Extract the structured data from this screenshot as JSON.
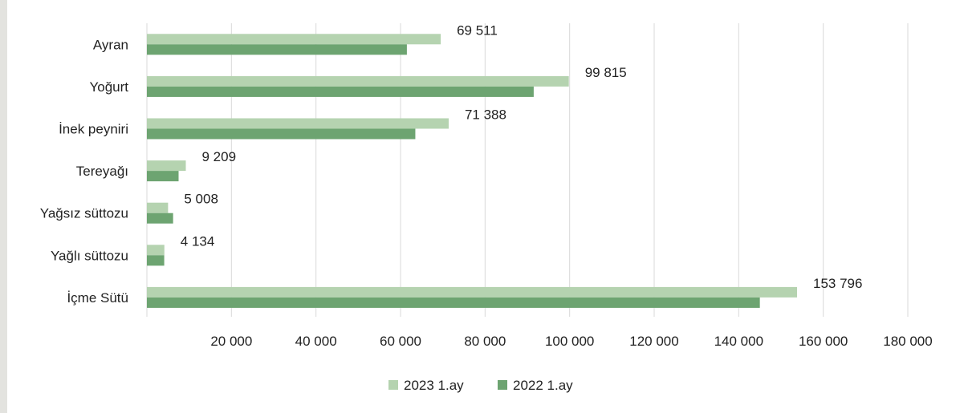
{
  "chart_data": {
    "type": "bar",
    "orientation": "horizontal",
    "categories": [
      "Ayran",
      "Yoğurt",
      "İnek peyniri",
      "Tereyağı",
      "Yağsız süttozu",
      "Yağlı süttozu",
      "İçme Sütü"
    ],
    "series": [
      {
        "name": "2023 1.ay",
        "color": "#b5d3b0",
        "values": [
          69511,
          99815,
          71388,
          9209,
          5008,
          4134,
          153796
        ],
        "labels": [
          "69 511",
          "99 815",
          "71 388",
          "9 209",
          "5 008",
          "4 134",
          "153 796"
        ]
      },
      {
        "name": "2022 1.ay",
        "color": "#6da471",
        "values": [
          61500,
          91500,
          63500,
          7500,
          6200,
          4100,
          145000
        ]
      }
    ],
    "xlim": [
      0,
      180000
    ],
    "xticks": [
      20000,
      40000,
      60000,
      80000,
      100000,
      120000,
      140000,
      160000,
      180000
    ],
    "xtick_labels": [
      "20 000",
      "40 000",
      "60 000",
      "80 000",
      "100 000",
      "120 000",
      "140 000",
      "160 000",
      "180 000"
    ],
    "grid": "vertical",
    "legend": "bottom"
  }
}
